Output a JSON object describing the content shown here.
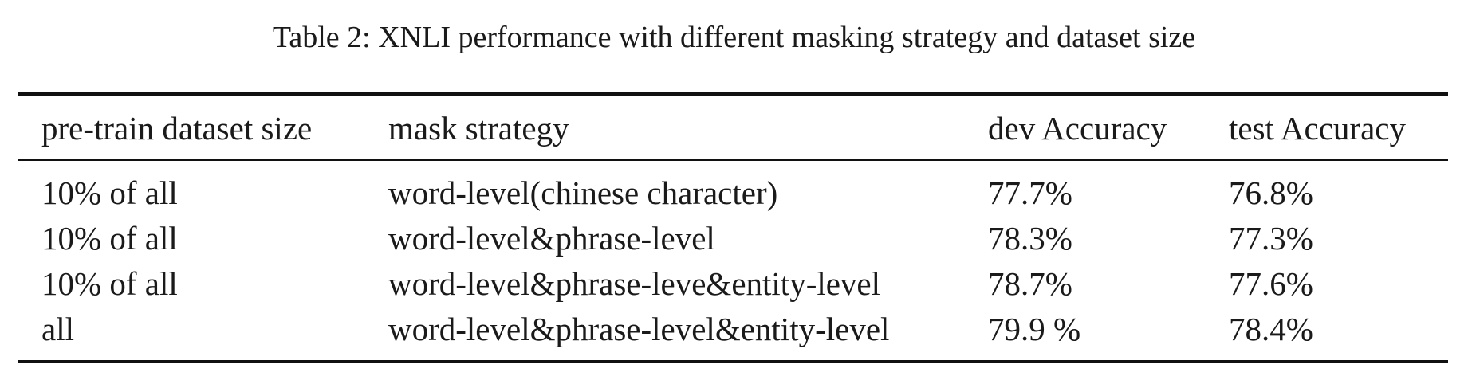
{
  "caption": "Table 2: XNLI performance with different masking strategy and dataset size",
  "table": {
    "headers": [
      "pre-train dataset size",
      "mask strategy",
      "dev Accuracy",
      "test Accuracy"
    ],
    "rows": [
      [
        "10% of all",
        "word-level(chinese character)",
        "77.7%",
        "76.8%"
      ],
      [
        "10% of all",
        "word-level&phrase-level",
        "78.3%",
        "77.3%"
      ],
      [
        "10% of all",
        "word-level&phrase-leve&entity-level",
        "78.7%",
        "77.6%"
      ],
      [
        "all",
        "word-level&phrase-level&entity-level",
        "79.9 %",
        "78.4%"
      ]
    ]
  }
}
